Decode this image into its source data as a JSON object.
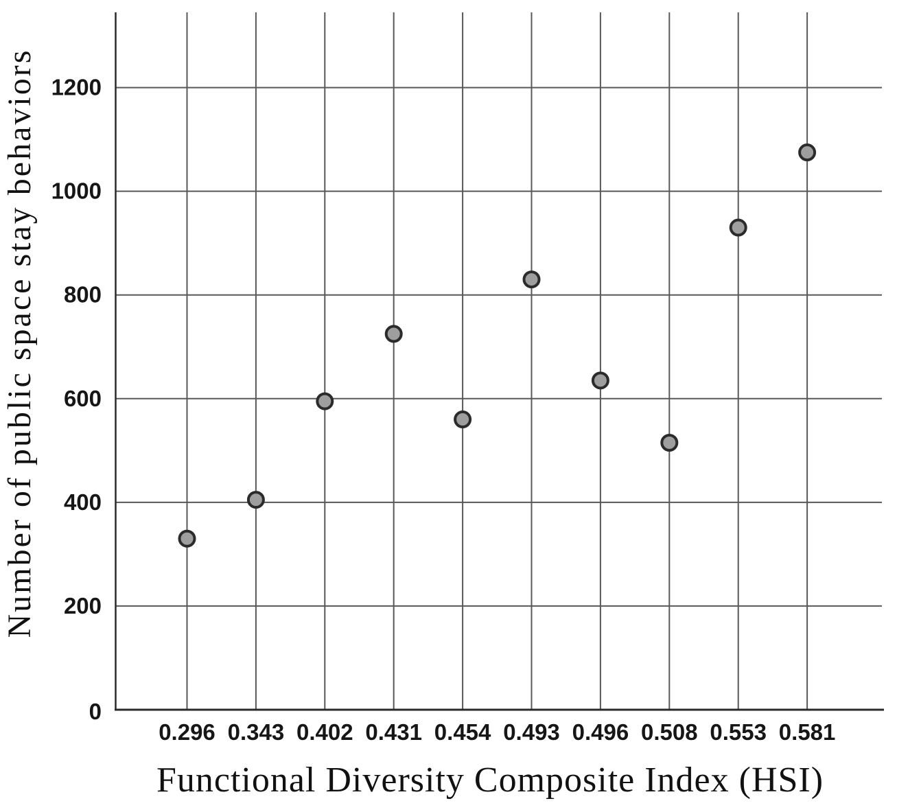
{
  "page": {
    "background": "#ffffff"
  },
  "chart_data": {
    "type": "scatter",
    "title": "",
    "xlabel": "Functional Diversity Composite Index (HSI)",
    "ylabel": "Number of public space stay behaviors",
    "x_tick_labels": [
      "0.296",
      "0.343",
      "0.402",
      "0.431",
      "0.454",
      "0.493",
      "0.496",
      "0.508",
      "0.553",
      "0.581"
    ],
    "y_ticks": [
      0,
      200,
      400,
      600,
      800,
      1000,
      1200
    ],
    "y_tick_labels": [
      "0",
      "200",
      "400",
      "600",
      "800",
      "1000",
      "1200"
    ],
    "points": [
      {
        "x_label": "0.296",
        "y": 330
      },
      {
        "x_label": "0.343",
        "y": 405
      },
      {
        "x_label": "0.402",
        "y": 595
      },
      {
        "x_label": "0.431",
        "y": 725
      },
      {
        "x_label": "0.454",
        "y": 560
      },
      {
        "x_label": "0.493",
        "y": 830
      },
      {
        "x_label": "0.496",
        "y": 635
      },
      {
        "x_label": "0.508",
        "y": 515
      },
      {
        "x_label": "0.553",
        "y": 930
      },
      {
        "x_label": "0.581",
        "y": 1075
      }
    ],
    "ylim": [
      0,
      1345
    ],
    "grid": true,
    "legend": "none",
    "colors": {
      "marker_fill": "#9e9e9e",
      "marker_stroke": "#2b2b2b",
      "grid_color": "#585858",
      "axis_color": "#2a2a2a",
      "text_color": "#161616"
    }
  }
}
